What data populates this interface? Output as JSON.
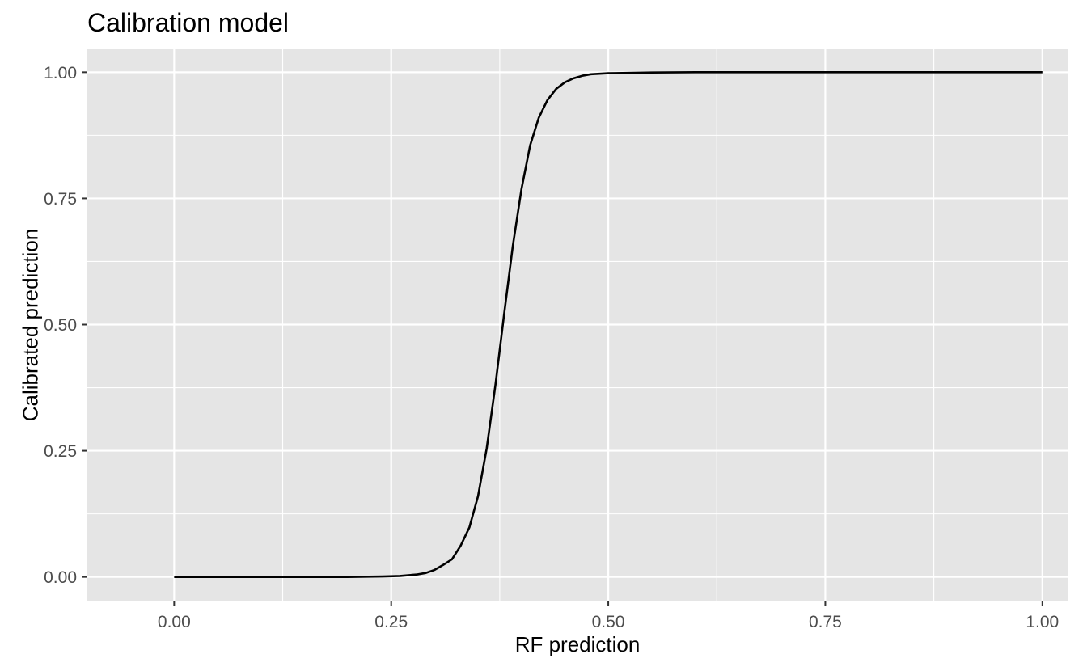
{
  "chart_data": {
    "type": "line",
    "title": "Calibration model",
    "xlabel": "RF prediction",
    "ylabel": "Calibrated prediction",
    "xlim": [
      -0.1,
      1.03
    ],
    "ylim": [
      -0.047,
      1.047
    ],
    "x_ticks": [
      0.0,
      0.25,
      0.5,
      0.75,
      1.0
    ],
    "x_tick_labels": [
      "0.00",
      "0.25",
      "0.50",
      "0.75",
      "1.00"
    ],
    "y_ticks": [
      0.0,
      0.25,
      0.5,
      0.75,
      1.0
    ],
    "y_tick_labels": [
      "0.00",
      "0.25",
      "0.50",
      "0.75",
      "1.00"
    ],
    "grid": true,
    "legend": "none",
    "colors": {
      "panel": "#E5E5E5",
      "grid": "#FFFFFF",
      "line": "#000000",
      "tick_text": "#4D4D4D"
    },
    "series": [
      {
        "x": [
          0.0,
          0.05,
          0.1,
          0.15,
          0.2,
          0.24,
          0.26,
          0.28,
          0.29,
          0.3,
          0.31,
          0.32,
          0.33,
          0.34,
          0.35,
          0.36,
          0.37,
          0.38,
          0.39,
          0.4,
          0.41,
          0.42,
          0.43,
          0.44,
          0.45,
          0.46,
          0.47,
          0.48,
          0.5,
          0.55,
          0.6,
          0.7,
          0.8,
          0.9,
          1.0
        ],
        "y": [
          0.0,
          0.0,
          0.0,
          0.0,
          0.0,
          0.001,
          0.002,
          0.005,
          0.008,
          0.014,
          0.024,
          0.035,
          0.062,
          0.098,
          0.16,
          0.255,
          0.38,
          0.52,
          0.655,
          0.768,
          0.855,
          0.91,
          0.945,
          0.967,
          0.98,
          0.988,
          0.993,
          0.996,
          0.998,
          0.9995,
          1.0,
          1.0,
          1.0,
          1.0,
          1.0
        ]
      }
    ]
  }
}
